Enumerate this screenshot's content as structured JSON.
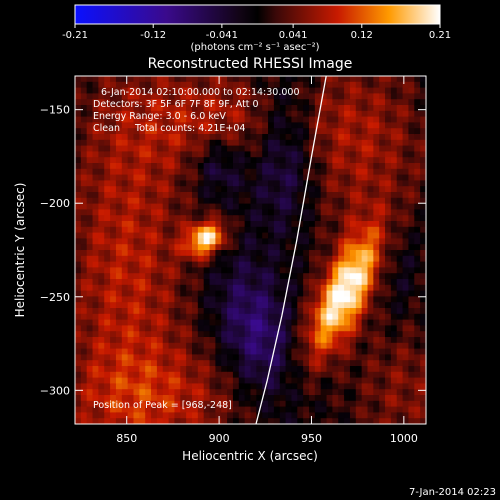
{
  "chart_data": {
    "type": "heatmap",
    "title": "Reconstructed RHESSI Image",
    "xlabel": "Heliocentric X (arcsec)",
    "ylabel": "Heliocentric Y (arcsec)",
    "xlim": [
      822,
      1012
    ],
    "ylim": [
      -318,
      -132
    ],
    "xticks": [
      850,
      900,
      950,
      1000
    ],
    "yticks": [
      -150,
      -200,
      -250,
      -300
    ],
    "colorbar": {
      "min": -0.21,
      "max": 0.21,
      "ticks": [
        "-0.21",
        "-0.12",
        "-0.041",
        "0.041",
        "0.12",
        "0.21"
      ],
      "label": "(photons cm⁻² s⁻¹ asec⁻²)"
    },
    "annotations": [
      "6-Jan-2014 02:10:00.000 to 02:14:30.000",
      "Detectors: 3F 5F 6F 7F 8F 9F, Att 0",
      "Energy Range: 3.0 - 6.0 keV",
      "Clean     Total counts: 4.21E+04",
      "Position of Peak = [968,-248]"
    ],
    "sources": [
      {
        "x": 968,
        "y": -248,
        "peak": 0.21,
        "shape": "elongated"
      },
      {
        "x": 893,
        "y": -219,
        "peak": 0.19,
        "shape": "compact"
      }
    ],
    "limb_curve": [
      [
        958,
        -132
      ],
      [
        950,
        -175
      ],
      [
        942,
        -220
      ],
      [
        934,
        -260
      ],
      [
        926,
        -295
      ],
      [
        920,
        -318
      ]
    ]
  },
  "footer_timestamp": "7-Jan-2014 02:23"
}
